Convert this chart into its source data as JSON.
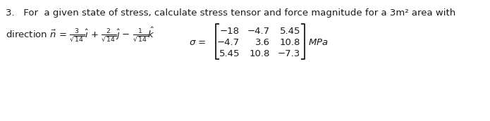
{
  "background_color": "#ffffff",
  "text_color": "#1a1a1a",
  "fig_width": 6.95,
  "fig_height": 1.72,
  "dpi": 100,
  "line1": "3.   For  a given state of stress, calculate stress tensor and force magnitude for a 3m² area with",
  "sigma_label": "σ =",
  "unit": "MPa",
  "matrix_rows": [
    [
      "−18",
      "−4.7",
      "5.45"
    ],
    [
      "−4.7",
      "3.6",
      "10.8"
    ],
    [
      "5.45",
      "10.8",
      "−7.3"
    ]
  ],
  "font_size": 9.5,
  "font_size_matrix": 9.5
}
